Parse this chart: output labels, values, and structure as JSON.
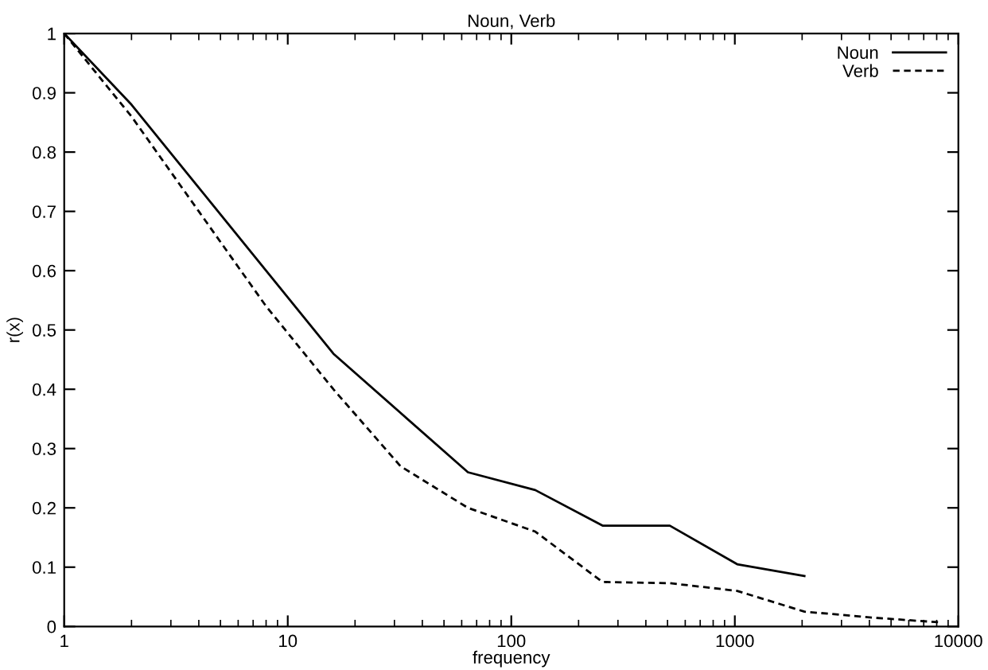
{
  "chart_data": {
    "type": "line",
    "title": "Noun, Verb",
    "xlabel": "frequency",
    "ylabel": "r(x)",
    "log": "x",
    "xlim": [
      1,
      10000
    ],
    "xticks": [
      1,
      10,
      100,
      1000,
      10000
    ],
    "ylim": [
      0,
      1
    ],
    "yticks": [
      0,
      0.1,
      0.2,
      0.3,
      0.4,
      0.5,
      0.6,
      0.7,
      0.8,
      0.9,
      1
    ],
    "grid": false,
    "legend": "top right",
    "marker": "none",
    "series": [
      {
        "name": "Noun",
        "color": "#000000",
        "line_style": "solid",
        "x": [
          1,
          2,
          4,
          8,
          16,
          32,
          64,
          128,
          256,
          512,
          1024,
          2048
        ],
        "values": [
          1,
          0.88,
          0.74,
          0.6,
          0.46,
          0.36,
          0.26,
          0.23,
          0.17,
          0.17,
          0.105,
          0.085
        ]
      },
      {
        "name": "Verb",
        "color": "#000000",
        "line_style": "dashed",
        "x": [
          1,
          2,
          4,
          8,
          16,
          32,
          64,
          128,
          256,
          512,
          1024,
          2048,
          4096,
          8192
        ],
        "values": [
          1,
          0.86,
          0.7,
          0.54,
          0.4,
          0.27,
          0.2,
          0.16,
          0.075,
          0.073,
          0.06,
          0.025,
          0.015,
          0.007
        ]
      }
    ]
  }
}
